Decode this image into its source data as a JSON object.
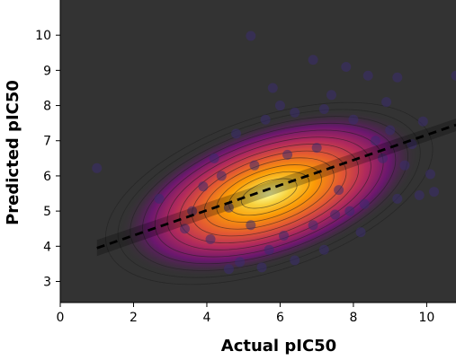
{
  "chart_data": {
    "type": "scatter",
    "title": "",
    "xlabel": "Actual pIC50",
    "ylabel": "Predicted pIC50",
    "xlim": [
      0,
      10.8
    ],
    "ylim": [
      2.4,
      11.0
    ],
    "xticks": [
      0,
      2,
      4,
      6,
      8,
      10
    ],
    "yticks": [
      3,
      4,
      5,
      6,
      7,
      8,
      9,
      10
    ],
    "grid": false,
    "background": "#333333",
    "points_color": "#3b2b6e",
    "trend_line": {
      "style": "dashed",
      "color": "#000000",
      "x": [
        1.0,
        10.8
      ],
      "y": [
        3.95,
        7.45
      ]
    },
    "density_center": [
      5.7,
      5.5
    ],
    "colormap": "inferno",
    "points": [
      {
        "x": 1.0,
        "y": 6.22
      },
      {
        "x": 5.2,
        "y": 9.98
      },
      {
        "x": 6.9,
        "y": 9.3
      },
      {
        "x": 5.8,
        "y": 8.5
      },
      {
        "x": 7.8,
        "y": 9.1
      },
      {
        "x": 8.4,
        "y": 8.85
      },
      {
        "x": 9.2,
        "y": 8.8
      },
      {
        "x": 10.8,
        "y": 8.85
      },
      {
        "x": 9.9,
        "y": 7.55
      },
      {
        "x": 9.4,
        "y": 6.3
      },
      {
        "x": 10.1,
        "y": 6.05
      },
      {
        "x": 9.8,
        "y": 5.45
      },
      {
        "x": 10.2,
        "y": 5.55
      },
      {
        "x": 9.2,
        "y": 5.35
      },
      {
        "x": 2.7,
        "y": 5.35
      },
      {
        "x": 3.6,
        "y": 5.0
      },
      {
        "x": 4.1,
        "y": 4.2
      },
      {
        "x": 4.9,
        "y": 3.55
      },
      {
        "x": 5.5,
        "y": 3.4
      },
      {
        "x": 4.6,
        "y": 3.35
      },
      {
        "x": 6.4,
        "y": 3.6
      },
      {
        "x": 7.2,
        "y": 3.9
      },
      {
        "x": 8.2,
        "y": 4.4
      },
      {
        "x": 8.3,
        "y": 5.2
      },
      {
        "x": 7.5,
        "y": 4.9
      },
      {
        "x": 8.8,
        "y": 6.5
      },
      {
        "x": 8.0,
        "y": 7.6
      },
      {
        "x": 7.2,
        "y": 7.9
      },
      {
        "x": 6.4,
        "y": 7.8
      },
      {
        "x": 5.6,
        "y": 7.6
      },
      {
        "x": 4.8,
        "y": 7.2
      },
      {
        "x": 4.2,
        "y": 6.5
      },
      {
        "x": 3.9,
        "y": 5.7
      },
      {
        "x": 4.6,
        "y": 5.1
      },
      {
        "x": 5.2,
        "y": 4.6
      },
      {
        "x": 6.1,
        "y": 4.3
      },
      {
        "x": 6.9,
        "y": 4.6
      },
      {
        "x": 7.6,
        "y": 5.6
      },
      {
        "x": 7.0,
        "y": 6.8
      },
      {
        "x": 6.2,
        "y": 6.6
      },
      {
        "x": 5.3,
        "y": 6.3
      },
      {
        "x": 8.6,
        "y": 7.0
      },
      {
        "x": 9.0,
        "y": 7.3
      },
      {
        "x": 8.9,
        "y": 8.1
      },
      {
        "x": 7.4,
        "y": 8.3
      },
      {
        "x": 6.0,
        "y": 8.0
      },
      {
        "x": 4.4,
        "y": 6.0
      },
      {
        "x": 3.4,
        "y": 4.5
      },
      {
        "x": 5.7,
        "y": 3.9
      },
      {
        "x": 7.9,
        "y": 5.0
      },
      {
        "x": 9.6,
        "y": 6.9
      }
    ]
  }
}
